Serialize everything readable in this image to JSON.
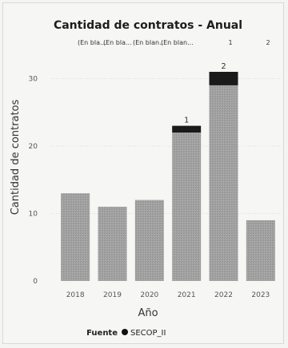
{
  "chart_data": {
    "type": "bar",
    "stacked": true,
    "title": "Cantidad de contratos - Anual",
    "legend_top": [
      "(En bla...",
      "(En bla...",
      "(En blan...",
      "(En blan...",
      "1",
      "2"
    ],
    "categories": [
      "2018",
      "2019",
      "2020",
      "2021",
      "2022",
      "2023"
    ],
    "series": [
      {
        "values": [
          13,
          11,
          12,
          22,
          29,
          9
        ],
        "color": "#9a9a9a"
      },
      {
        "values": [
          0,
          0,
          0,
          1,
          2,
          0
        ],
        "color": "#1a1a1a"
      }
    ],
    "data_labels": [
      {
        "category": "2021",
        "text": "1"
      },
      {
        "category": "2022",
        "text": "2"
      }
    ],
    "xlabel": "Año",
    "ylabel": "Cantidad de contratos",
    "ylim": [
      0,
      31
    ],
    "yticks": [
      0,
      10,
      20,
      30
    ],
    "grid": true,
    "legend_bottom": {
      "title": "Fuente",
      "items": [
        {
          "label": "SECOP_II",
          "color": "#111111"
        }
      ]
    }
  }
}
